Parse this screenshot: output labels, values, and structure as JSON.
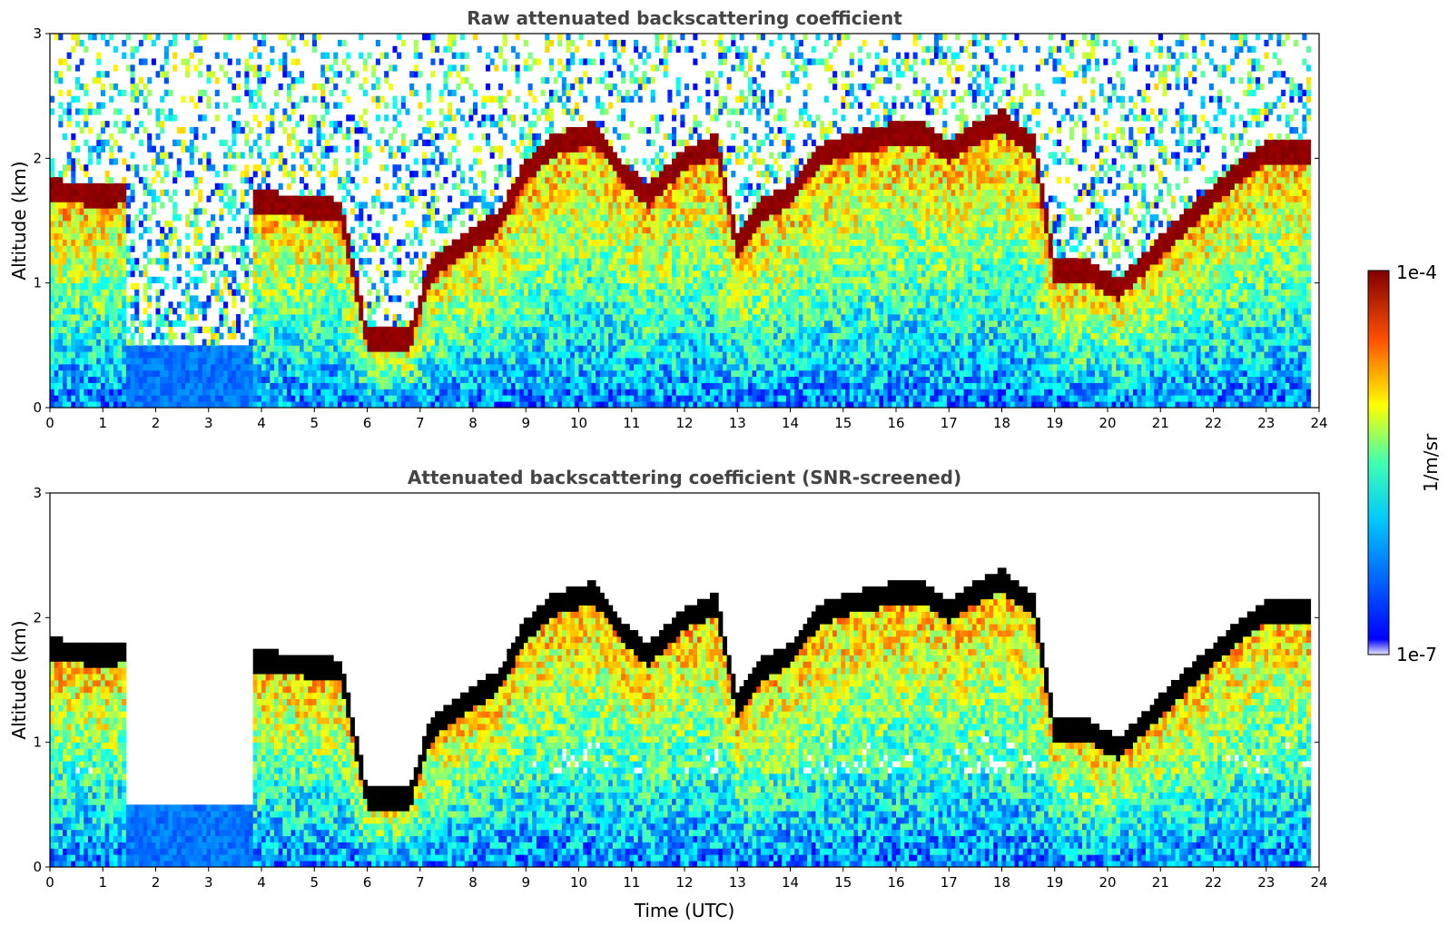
{
  "chart_data": [
    {
      "type": "heatmap",
      "title": "Raw attenuated backscattering coefficient",
      "ylabel": "Altitude (km)",
      "xlabel": "",
      "xlim": [
        0,
        24
      ],
      "ylim": [
        0,
        3
      ],
      "x_ticks": [
        "0",
        "1",
        "2",
        "3",
        "4",
        "5",
        "6",
        "7",
        "8",
        "9",
        "10",
        "11",
        "12",
        "13",
        "14",
        "15",
        "16",
        "17",
        "18",
        "19",
        "20",
        "21",
        "22",
        "23",
        "24"
      ],
      "y_ticks": [
        "0",
        "1",
        "2",
        "3"
      ],
      "screened": false
    },
    {
      "type": "heatmap",
      "title": "Attenuated backscattering coefficient (SNR-screened)",
      "ylabel": "Altitude (km)",
      "xlabel": "Time (UTC)",
      "xlim": [
        0,
        24
      ],
      "ylim": [
        0,
        3
      ],
      "x_ticks": [
        "0",
        "1",
        "2",
        "3",
        "4",
        "5",
        "6",
        "7",
        "8",
        "9",
        "10",
        "11",
        "12",
        "13",
        "14",
        "15",
        "16",
        "17",
        "18",
        "19",
        "20",
        "21",
        "22",
        "23",
        "24"
      ],
      "y_ticks": [
        "0",
        "1",
        "2",
        "3"
      ],
      "screened": true
    }
  ],
  "colorbar": {
    "label": "1/m/sr",
    "max_label": "1e-4",
    "min_label": "1e-7",
    "colormap": "jet"
  },
  "cloud_top_km": [
    [
      0.0,
      1.75
    ],
    [
      0.5,
      1.72
    ],
    [
      1.0,
      1.7
    ],
    [
      1.4,
      1.72
    ],
    [
      3.8,
      1.65
    ],
    [
      4.5,
      1.63
    ],
    [
      5.5,
      1.58
    ],
    [
      6.0,
      0.55
    ],
    [
      6.8,
      0.55
    ],
    [
      7.2,
      1.1
    ],
    [
      7.8,
      1.3
    ],
    [
      8.5,
      1.5
    ],
    [
      9.0,
      1.9
    ],
    [
      9.5,
      2.1
    ],
    [
      10.3,
      2.2
    ],
    [
      10.8,
      1.9
    ],
    [
      11.3,
      1.7
    ],
    [
      12.0,
      2.0
    ],
    [
      12.6,
      2.1
    ],
    [
      13.0,
      1.3
    ],
    [
      13.5,
      1.6
    ],
    [
      14.0,
      1.7
    ],
    [
      14.5,
      2.0
    ],
    [
      15.0,
      2.1
    ],
    [
      15.5,
      2.15
    ],
    [
      16.0,
      2.2
    ],
    [
      16.5,
      2.2
    ],
    [
      17.0,
      2.05
    ],
    [
      17.5,
      2.2
    ],
    [
      18.0,
      2.3
    ],
    [
      18.6,
      2.1
    ],
    [
      19.0,
      1.1
    ],
    [
      19.6,
      1.1
    ],
    [
      20.2,
      0.95
    ],
    [
      20.8,
      1.2
    ],
    [
      21.5,
      1.5
    ],
    [
      22.0,
      1.7
    ],
    [
      22.5,
      1.9
    ],
    [
      23.0,
      2.05
    ],
    [
      23.8,
      2.05
    ]
  ]
}
